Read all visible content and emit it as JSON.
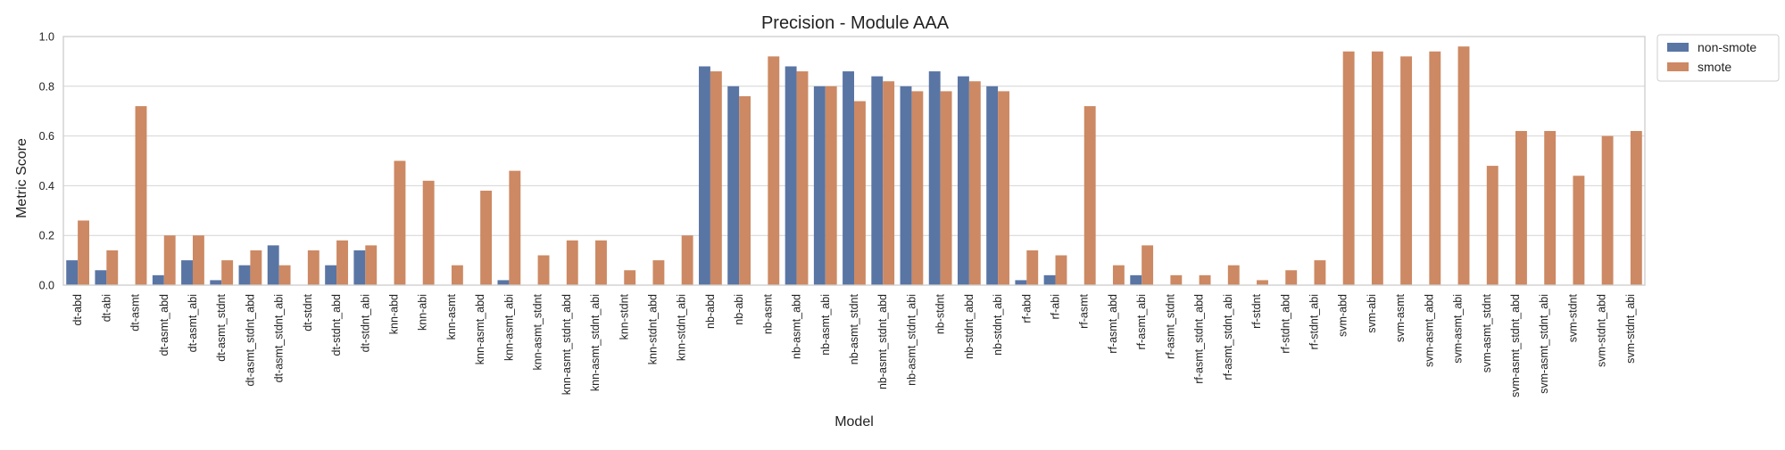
{
  "chart_data": {
    "type": "bar",
    "title": "Precision - Module AAA",
    "xlabel": "Model",
    "ylabel": "Metric Score",
    "ylim": [
      0,
      1
    ],
    "yticks": [
      "0.0",
      "0.2",
      "0.4",
      "0.6",
      "0.8",
      "1.0"
    ],
    "grid": true,
    "legend": "outside-top-right",
    "categories": [
      "dt-abd",
      "dt-abi",
      "dt-asmt",
      "dt-asmt_abd",
      "dt-asmt_abi",
      "dt-asmt_stdnt",
      "dt-asmt_stdnt_abd",
      "dt-asmt_stdnt_abi",
      "dt-stdnt",
      "dt-stdnt_abd",
      "dt-stdnt_abi",
      "knn-abd",
      "knn-abi",
      "knn-asmt",
      "knn-asmt_abd",
      "knn-asmt_abi",
      "knn-asmt_stdnt",
      "knn-asmt_stdnt_abd",
      "knn-asmt_stdnt_abi",
      "knn-stdnt",
      "knn-stdnt_abd",
      "knn-stdnt_abi",
      "nb-abd",
      "nb-abi",
      "nb-asmt",
      "nb-asmt_abd",
      "nb-asmt_abi",
      "nb-asmt_stdnt",
      "nb-asmt_stdnt_abd",
      "nb-asmt_stdnt_abi",
      "nb-stdnt",
      "nb-stdnt_abd",
      "nb-stdnt_abi",
      "rf-abd",
      "rf-abi",
      "rf-asmt",
      "rf-asmt_abd",
      "rf-asmt_abi",
      "rf-asmt_stdnt",
      "rf-asmt_stdnt_abd",
      "rf-asmt_stdnt_abi",
      "rf-stdnt",
      "rf-stdnt_abd",
      "rf-stdnt_abi",
      "svm-abd",
      "svm-abi",
      "svm-asmt",
      "svm-asmt_abd",
      "svm-asmt_abi",
      "svm-asmt_stdnt",
      "svm-asmt_stdnt_abd",
      "svm-asmt_stdnt_abi",
      "svm-stdnt",
      "svm-stdnt_abd",
      "svm-stdnt_abi"
    ],
    "series": [
      {
        "name": "non-smote",
        "color": "#5975a4",
        "values": [
          0.1,
          0.06,
          0.0,
          0.04,
          0.1,
          0.02,
          0.08,
          0.16,
          0.0,
          0.08,
          0.14,
          0.0,
          0.0,
          0.0,
          0.0,
          0.02,
          0.0,
          0.0,
          0.0,
          0.0,
          0.0,
          0.0,
          0.88,
          0.8,
          0.0,
          0.88,
          0.8,
          0.86,
          0.84,
          0.8,
          0.86,
          0.84,
          0.8,
          0.02,
          0.04,
          0.0,
          0.0,
          0.04,
          0.0,
          0.0,
          0.0,
          0.0,
          0.0,
          0.0,
          0.0,
          0.0,
          0.0,
          0.0,
          0.0,
          0.0,
          0.0,
          0.0,
          0.0,
          0.0,
          0.0
        ]
      },
      {
        "name": "smote",
        "color": "#cc8963",
        "values": [
          0.26,
          0.14,
          0.72,
          0.2,
          0.2,
          0.1,
          0.14,
          0.08,
          0.14,
          0.18,
          0.16,
          0.5,
          0.42,
          0.08,
          0.38,
          0.46,
          0.12,
          0.18,
          0.18,
          0.06,
          0.1,
          0.2,
          0.86,
          0.76,
          0.92,
          0.86,
          0.8,
          0.74,
          0.82,
          0.78,
          0.78,
          0.82,
          0.78,
          0.14,
          0.12,
          0.72,
          0.08,
          0.16,
          0.04,
          0.04,
          0.08,
          0.02,
          0.06,
          0.1,
          0.94,
          0.94,
          0.92,
          0.94,
          0.96,
          0.48,
          0.62,
          0.62,
          0.44,
          0.6,
          0.62
        ]
      }
    ]
  }
}
